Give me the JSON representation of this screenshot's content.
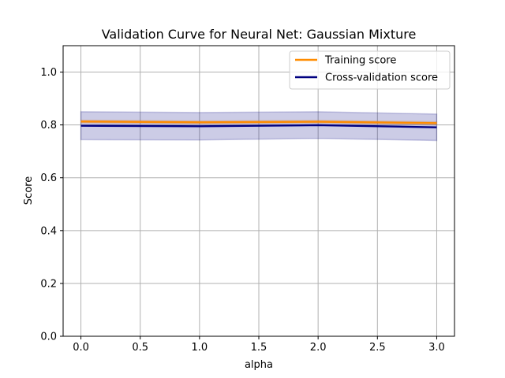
{
  "chart_data": {
    "type": "line",
    "title": "Validation Curve for Neural Net: Gaussian Mixture",
    "xlabel": "alpha",
    "ylabel": "Score",
    "xlim": [
      -0.15,
      3.15
    ],
    "ylim": [
      0.0,
      1.1
    ],
    "x_ticks": [
      0.0,
      0.5,
      1.0,
      1.5,
      2.0,
      2.5,
      3.0
    ],
    "x_tick_labels": [
      "0.0",
      "0.5",
      "1.0",
      "1.5",
      "2.0",
      "2.5",
      "3.0"
    ],
    "y_ticks": [
      0.0,
      0.2,
      0.4,
      0.6,
      0.8,
      1.0
    ],
    "y_tick_labels": [
      "0.0",
      "0.2",
      "0.4",
      "0.6",
      "0.8",
      "1.0"
    ],
    "grid": true,
    "legend_position": "top-right",
    "x": [
      0.0,
      1.0,
      2.0,
      3.0
    ],
    "series": [
      {
        "name": "Training score",
        "color": "#ff8c00",
        "values": [
          0.813,
          0.81,
          0.812,
          0.807
        ],
        "band_lower": [
          0.808,
          0.805,
          0.807,
          0.801
        ],
        "band_upper": [
          0.818,
          0.815,
          0.817,
          0.812
        ]
      },
      {
        "name": "Cross-validation score",
        "color": "#000080",
        "values": [
          0.797,
          0.795,
          0.799,
          0.791
        ],
        "band_lower": [
          0.744,
          0.743,
          0.749,
          0.741
        ],
        "band_upper": [
          0.85,
          0.847,
          0.85,
          0.841
        ]
      }
    ]
  }
}
